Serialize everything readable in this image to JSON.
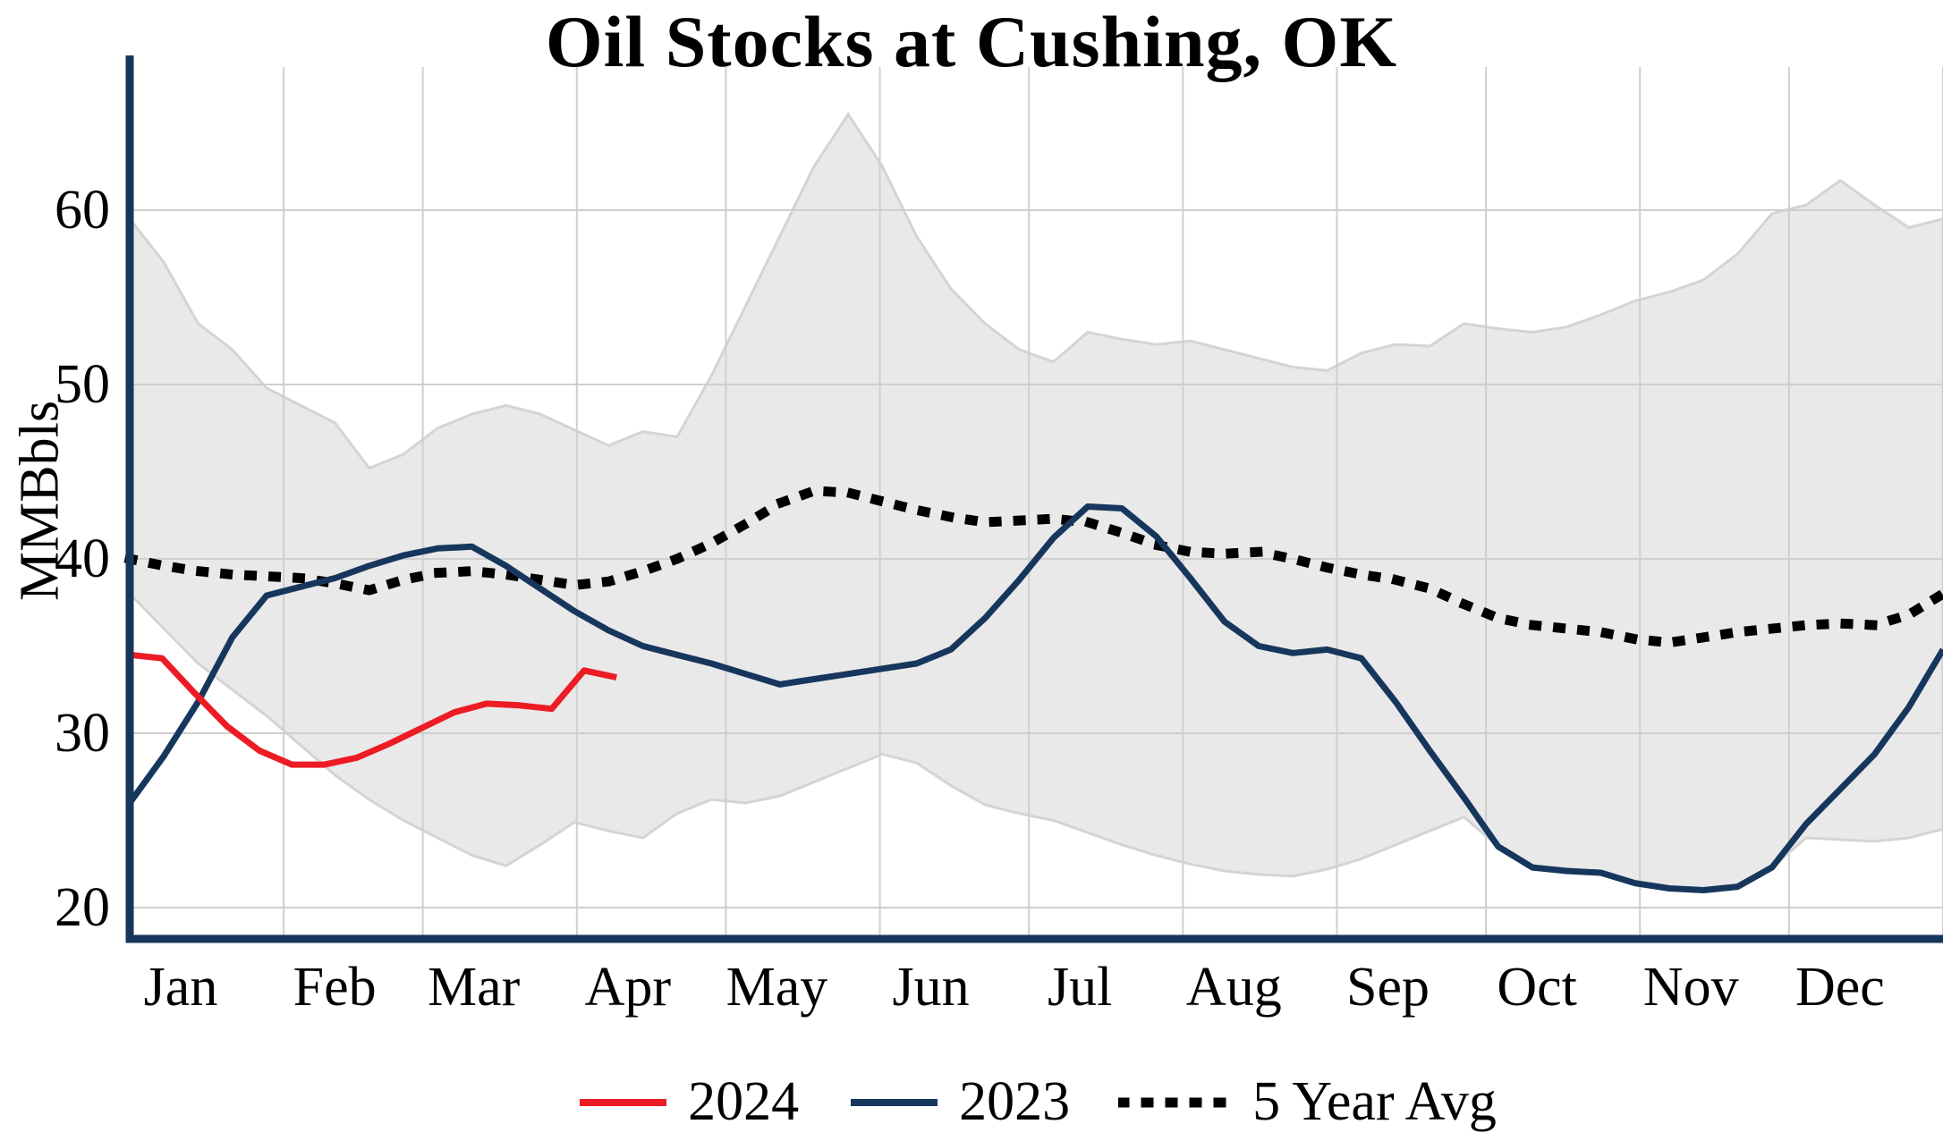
{
  "chart_data": {
    "type": "line",
    "title": "Oil Stocks at Cushing, OK",
    "ylabel": "MMBbls",
    "y_ticks": [
      20,
      30,
      40,
      50,
      60
    ],
    "ylim": [
      18,
      67.5
    ],
    "x_months": [
      "Jan",
      "Feb",
      "Mar",
      "Apr",
      "May",
      "Jun",
      "Jul",
      "Aug",
      "Sep",
      "Oct",
      "Nov",
      "Dec"
    ],
    "grid": true,
    "legend_position": "bottom-center",
    "colors": {
      "band_fill": "#e9e9e9",
      "band_edge": "#d4d4d4",
      "grid": "#cfcfcf",
      "axis": "#17365d"
    },
    "band": {
      "name": "5-year-range",
      "x_span_days": [
        0,
        365
      ],
      "max": [
        59.5,
        57.0,
        53.5,
        52.0,
        49.8,
        48.8,
        47.8,
        45.2,
        46.0,
        47.5,
        48.3,
        48.8,
        48.3,
        47.4,
        46.5,
        47.3,
        47.0,
        50.5,
        54.5,
        58.5,
        62.5,
        65.5,
        62.5,
        58.5,
        55.5,
        53.5,
        52.0,
        51.3,
        53.0,
        52.6,
        52.3,
        52.5,
        52.0,
        51.5,
        51.0,
        50.8,
        51.8,
        52.3,
        52.2,
        53.5,
        53.2,
        53.0,
        53.3,
        54.0,
        54.8,
        55.3,
        56.0,
        57.5,
        59.8,
        60.3,
        61.7,
        60.3,
        59.0,
        59.5
      ],
      "min": [
        38.0,
        36.0,
        34.0,
        32.5,
        31.0,
        29.3,
        27.6,
        26.2,
        25.0,
        24.0,
        23.0,
        22.4,
        23.6,
        24.9,
        24.4,
        24.0,
        25.4,
        26.2,
        26.0,
        26.4,
        27.2,
        28.0,
        28.8,
        28.3,
        27.0,
        25.9,
        25.4,
        25.0,
        24.3,
        23.6,
        23.0,
        22.5,
        22.1,
        21.9,
        21.8,
        22.2,
        22.8,
        23.6,
        24.4,
        25.2,
        23.5,
        22.3,
        22.1,
        22.0,
        21.4,
        21.1,
        21.0,
        21.2,
        22.3,
        24.0,
        23.9,
        23.8,
        24.0,
        24.5
      ]
    },
    "series": [
      {
        "name": "2024",
        "color": "#ed1c24",
        "style": "solid",
        "x_span_days": [
          0,
          98
        ],
        "values": [
          34.5,
          34.3,
          32.3,
          30.4,
          29.0,
          28.2,
          28.2,
          28.6,
          29.4,
          30.3,
          31.2,
          31.7,
          31.6,
          31.4,
          33.6,
          33.2
        ]
      },
      {
        "name": "2023",
        "color": "#17365d",
        "style": "solid",
        "x_span_days": [
          0,
          365
        ],
        "values": [
          26.0,
          28.7,
          31.8,
          35.5,
          37.9,
          38.4,
          38.9,
          39.6,
          40.2,
          40.6,
          40.7,
          39.6,
          38.3,
          37.0,
          35.9,
          35.0,
          34.5,
          34.0,
          33.4,
          32.8,
          33.1,
          33.4,
          33.7,
          34.0,
          34.8,
          36.6,
          38.8,
          41.2,
          43.0,
          42.9,
          41.3,
          38.9,
          36.4,
          35.0,
          34.6,
          34.8,
          34.3,
          31.8,
          29.0,
          26.3,
          23.5,
          22.3,
          22.1,
          22.0,
          21.4,
          21.1,
          21.0,
          21.2,
          22.3,
          24.8,
          26.8,
          28.8,
          31.5,
          34.8
        ]
      },
      {
        "name": "5 Year Avg",
        "color": "#000000",
        "style": "dotted",
        "x_span_days": [
          0,
          365
        ],
        "values": [
          40.0,
          39.6,
          39.3,
          39.1,
          39.0,
          38.9,
          38.6,
          38.2,
          38.8,
          39.2,
          39.3,
          39.1,
          38.8,
          38.5,
          38.7,
          39.3,
          40.0,
          40.9,
          42.0,
          43.2,
          43.9,
          43.8,
          43.3,
          42.8,
          42.4,
          42.1,
          42.2,
          42.3,
          42.1,
          41.5,
          40.8,
          40.4,
          40.3,
          40.4,
          40.0,
          39.5,
          39.1,
          38.8,
          38.3,
          37.4,
          36.6,
          36.2,
          36.0,
          35.8,
          35.4,
          35.2,
          35.5,
          35.8,
          36.0,
          36.2,
          36.3,
          36.2,
          36.8,
          38.0
        ]
      }
    ],
    "legend": [
      "2024",
      "2023",
      "5 Year Avg"
    ]
  }
}
